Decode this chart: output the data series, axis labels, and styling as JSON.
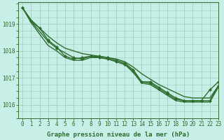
{
  "background_color": "#c8eee8",
  "grid_color": "#a0d0c0",
  "line_color": "#2d6e2d",
  "title": "Graphe pression niveau de la mer (hPa)",
  "tick_fontsize": 5.5,
  "xlabel_fontsize": 6.5,
  "ylim": [
    1015.5,
    1019.8
  ],
  "xlim": [
    -0.5,
    23
  ],
  "yticks": [
    1016,
    1017,
    1018,
    1019
  ],
  "xticks": [
    0,
    1,
    2,
    3,
    4,
    5,
    6,
    7,
    8,
    9,
    10,
    11,
    12,
    13,
    14,
    15,
    16,
    17,
    18,
    19,
    20,
    21,
    22,
    23
  ],
  "series": [
    {
      "x": [
        0,
        1,
        2,
        3,
        4,
        5,
        6,
        7,
        8,
        9,
        10,
        11,
        12,
        13,
        14,
        15,
        16,
        17,
        18,
        19,
        20,
        21,
        22,
        23
      ],
      "y": [
        1019.6,
        1019.15,
        1018.85,
        1018.55,
        1018.3,
        1018.1,
        1018.0,
        1017.9,
        1017.85,
        1017.8,
        1017.75,
        1017.7,
        1017.6,
        1017.4,
        1017.15,
        1016.95,
        1016.75,
        1016.6,
        1016.45,
        1016.3,
        1016.25,
        1016.25,
        1016.25,
        1016.7
      ],
      "marker": false,
      "lw": 1.0
    },
    {
      "x": [
        0,
        1,
        3,
        4,
        6,
        7,
        8,
        9,
        10,
        11,
        12,
        13,
        14,
        15,
        16,
        17,
        18,
        19,
        20,
        21,
        22,
        23
      ],
      "y": [
        1019.6,
        1019.1,
        1018.35,
        1018.1,
        1017.75,
        1017.7,
        1017.8,
        1017.75,
        1017.7,
        1017.6,
        1017.5,
        1017.25,
        1016.85,
        1016.8,
        1016.6,
        1016.4,
        1016.2,
        1016.15,
        1016.15,
        1016.15,
        1016.15,
        1016.7
      ],
      "marker": true,
      "lw": 1.0
    },
    {
      "x": [
        0,
        1,
        3,
        4,
        5,
        6,
        7,
        8,
        9,
        10,
        11,
        12,
        13,
        14,
        15,
        16,
        17,
        18,
        19,
        20,
        21,
        22,
        23
      ],
      "y": [
        1019.6,
        1019.05,
        1018.2,
        1018.0,
        1017.75,
        1017.65,
        1017.65,
        1017.75,
        1017.75,
        1017.7,
        1017.6,
        1017.5,
        1017.2,
        1016.8,
        1016.75,
        1016.55,
        1016.35,
        1016.15,
        1016.1,
        1016.1,
        1016.1,
        1016.1,
        1016.65
      ],
      "marker": false,
      "lw": 1.0
    },
    {
      "x": [
        0,
        1,
        2,
        3,
        4,
        5,
        6,
        7,
        8,
        9,
        10,
        11,
        12,
        13,
        14,
        15,
        16,
        17,
        18,
        19,
        20,
        21,
        22,
        23
      ],
      "y": [
        1019.6,
        1019.1,
        1018.85,
        1018.4,
        1018.15,
        1017.8,
        1017.7,
        1017.75,
        1017.8,
        1017.8,
        1017.75,
        1017.65,
        1017.55,
        1017.3,
        1016.85,
        1016.85,
        1016.65,
        1016.45,
        1016.25,
        1016.15,
        1016.15,
        1016.15,
        1016.55,
        1016.85
      ],
      "marker": true,
      "lw": 1.0
    }
  ]
}
